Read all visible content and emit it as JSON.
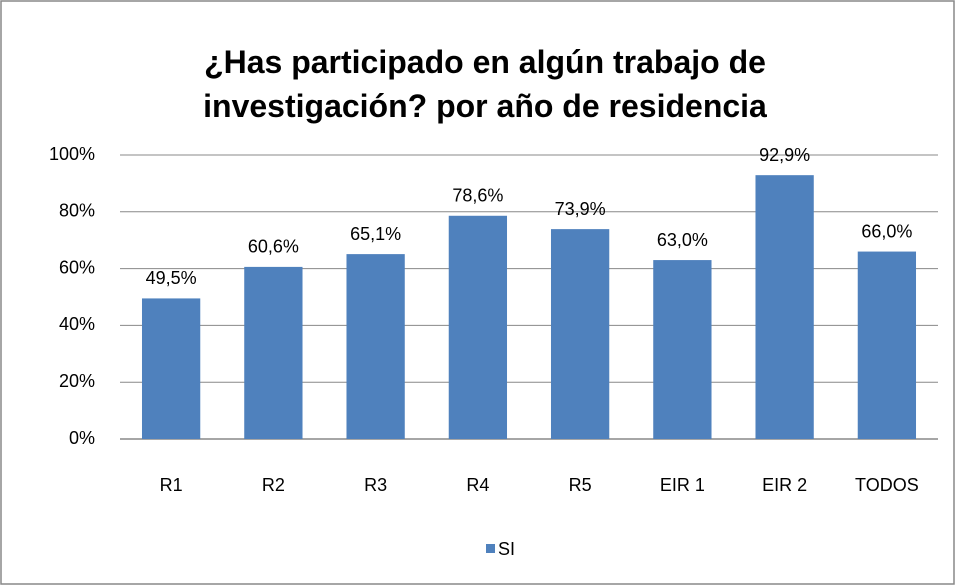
{
  "chart_data": {
    "type": "bar",
    "title": "¿Has participado en algún trabajo de investigación? por año de residencia",
    "categories": [
      "R1",
      "R2",
      "R3",
      "R4",
      "R5",
      "EIR 1",
      "EIR 2",
      "TODOS"
    ],
    "series": [
      {
        "name": "SI",
        "color": "#4f81bd",
        "values": [
          49.5,
          60.6,
          65.1,
          78.6,
          73.9,
          63.0,
          92.9,
          66.0
        ],
        "value_labels": [
          "49,5%",
          "60,6%",
          "65,1%",
          "78,6%",
          "73,9%",
          "63,0%",
          "92,9%",
          "66,0%"
        ]
      }
    ],
    "ylim": [
      0,
      100
    ],
    "yticks": [
      {
        "value": 0,
        "label": "0%"
      },
      {
        "value": 20,
        "label": "20%"
      },
      {
        "value": 40,
        "label": "40%"
      },
      {
        "value": 60,
        "label": "60%"
      },
      {
        "value": 80,
        "label": "80%"
      },
      {
        "value": 100,
        "label": "100%"
      }
    ],
    "grid": true,
    "legend": "bottom"
  }
}
